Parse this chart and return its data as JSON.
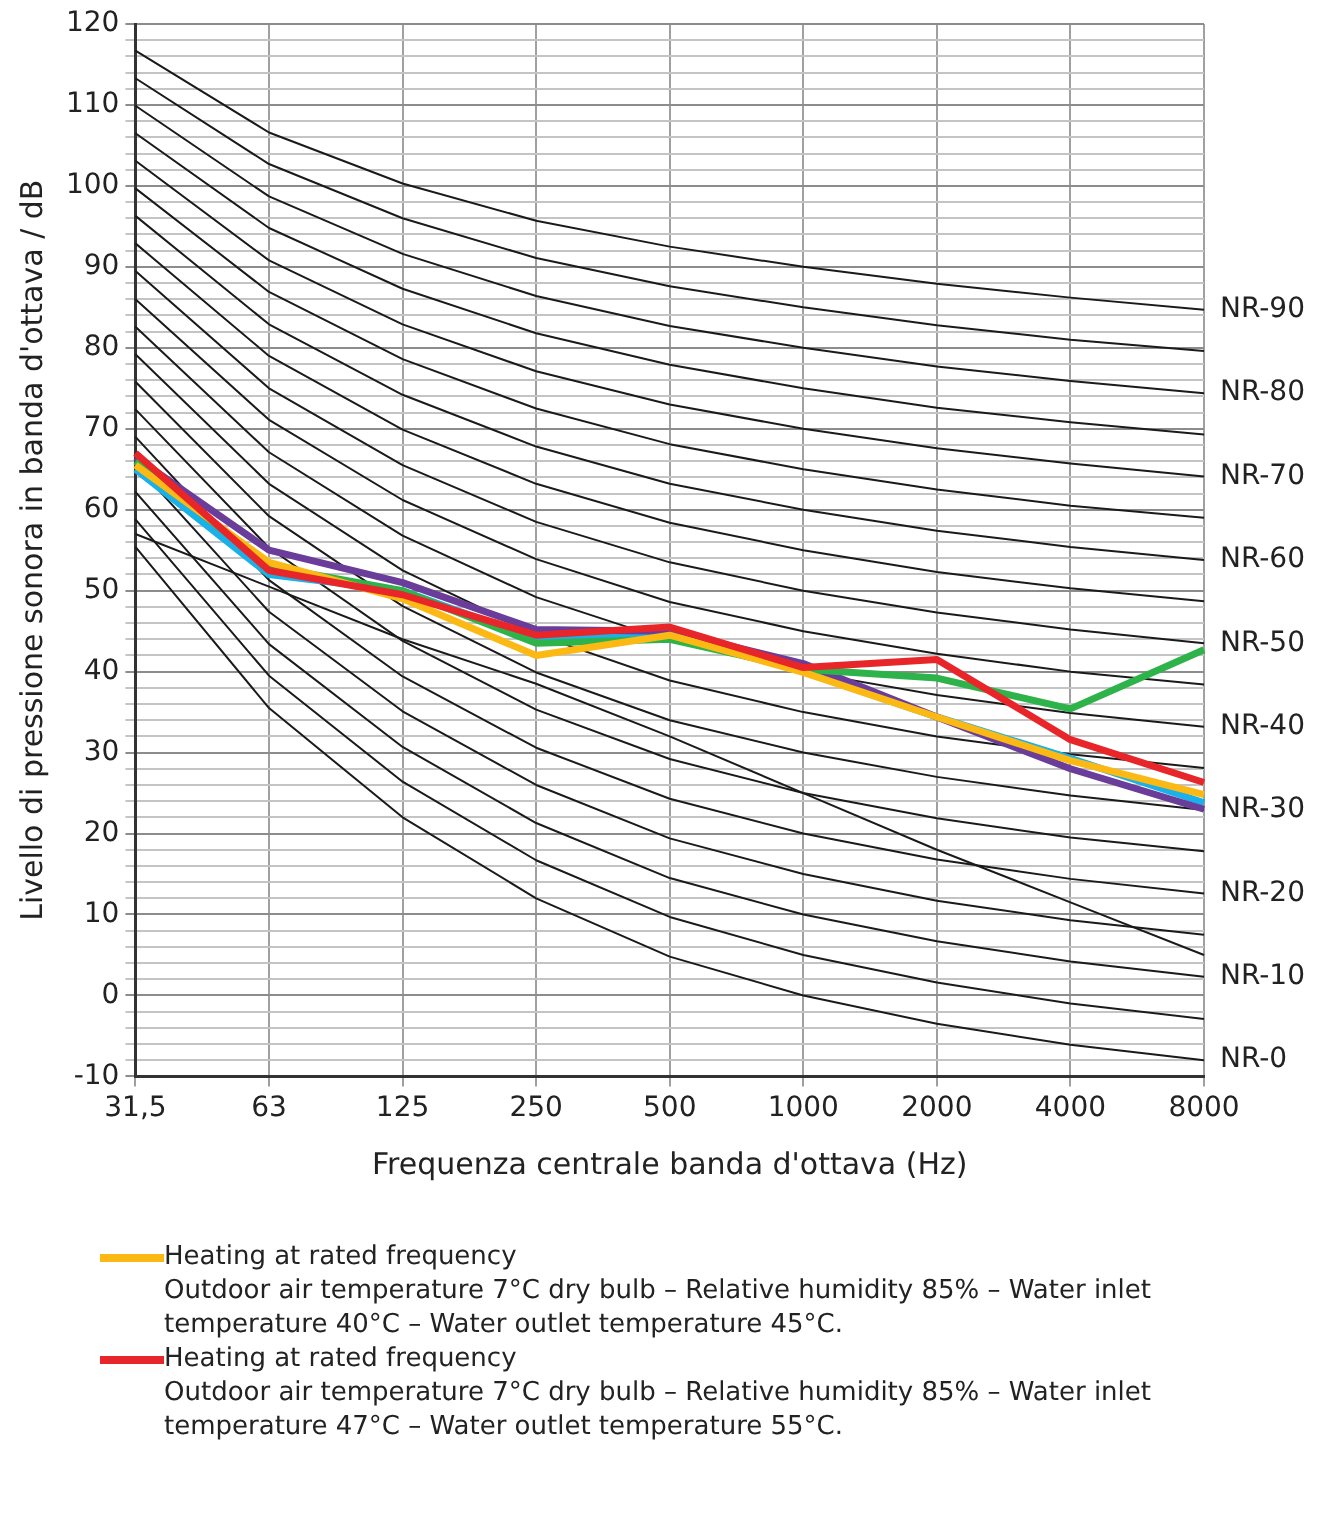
{
  "chart_data": {
    "type": "line",
    "xlabel": "Frequenza centrale banda d'ottava (Hz)",
    "ylabel": "Livello di pressione sonora in banda d'ottava / dB",
    "categories": [
      "31,5",
      "63",
      "125",
      "250",
      "500",
      "1000",
      "2000",
      "4000",
      "8000"
    ],
    "ylim": [
      -10,
      120
    ],
    "yticks": [
      -10,
      {
        "value": -8,
        "label": null
      },
      {
        "value": -6,
        "label": null
      },
      {
        "value": -4,
        "label": null
      },
      {
        "value": -2,
        "label": null
      },
      0,
      {
        "value": 2,
        "label": null
      },
      {
        "value": 4,
        "label": null
      },
      {
        "value": 6,
        "label": null
      },
      {
        "value": 8,
        "label": null
      },
      10,
      {
        "value": 12,
        "label": null
      },
      {
        "value": 14,
        "label": null
      },
      {
        "value": 16,
        "label": null
      },
      {
        "value": 18,
        "label": null
      },
      20,
      {
        "value": 22,
        "label": null
      },
      {
        "value": 24,
        "label": null
      },
      {
        "value": 26,
        "label": null
      },
      {
        "value": 28,
        "label": null
      },
      30,
      {
        "value": 32,
        "label": null
      },
      {
        "value": 34,
        "label": null
      },
      {
        "value": 36,
        "label": null
      },
      {
        "value": 38,
        "label": null
      },
      40,
      {
        "value": 42,
        "label": null
      },
      {
        "value": 44,
        "label": null
      },
      {
        "value": 46,
        "label": null
      },
      {
        "value": 48,
        "label": null
      },
      50,
      {
        "value": 52,
        "label": null
      },
      {
        "value": 54,
        "label": null
      },
      {
        "value": 56,
        "label": null
      },
      {
        "value": 58,
        "label": null
      },
      60,
      {
        "value": 62,
        "label": null
      },
      {
        "value": 64,
        "label": null
      },
      {
        "value": 66,
        "label": null
      },
      {
        "value": 68,
        "label": null
      },
      70,
      {
        "value": 72,
        "label": null
      },
      {
        "value": 74,
        "label": null
      },
      {
        "value": 76,
        "label": null
      },
      {
        "value": 78,
        "label": null
      },
      80,
      {
        "value": 82,
        "label": null
      },
      {
        "value": 84,
        "label": null
      },
      {
        "value": 86,
        "label": null
      },
      {
        "value": 88,
        "label": null
      },
      90,
      {
        "value": 92,
        "label": null
      },
      {
        "value": 94,
        "label": null
      },
      {
        "value": 96,
        "label": null
      },
      {
        "value": 98,
        "label": null
      },
      100,
      {
        "value": 102,
        "label": null
      },
      {
        "value": 104,
        "label": null
      },
      {
        "value": 106,
        "label": null
      },
      {
        "value": 108,
        "label": null
      },
      110,
      {
        "value": 112,
        "label": null
      },
      {
        "value": 114,
        "label": null
      },
      {
        "value": 116,
        "label": null
      },
      {
        "value": 118,
        "label": null
      },
      120
    ],
    "grid": true,
    "legend": "bottom",
    "marker": "none",
    "series": [
      {
        "color": "#1a1a1a",
        "values": [
          55.4,
          35.5,
          22,
          12,
          4.8,
          0,
          -3.5,
          -6.1,
          -8
        ]
      },
      {
        "color": "#1a1a1a",
        "values": [
          58.8,
          39.5,
          26.4,
          16.7,
          9.7,
          5,
          1.6,
          -1.0,
          -2.9
        ]
      },
      {
        "color": "#1a1a1a",
        "values": [
          62.2,
          43.4,
          30.7,
          21.3,
          14.5,
          10,
          6.7,
          4.2,
          2.3
        ]
      },
      {
        "color": "#1a1a1a",
        "values": [
          65.6,
          47.4,
          35.1,
          26.0,
          19.4,
          15,
          11.7,
          9.3,
          7.5
        ]
      },
      {
        "color": "#1a1a1a",
        "values": [
          69.0,
          51.3,
          39.4,
          30.6,
          24.3,
          20,
          16.8,
          14.4,
          12.6
        ]
      },
      {
        "color": "#1a1a1a",
        "values": [
          72.4,
          55.3,
          43.8,
          35.3,
          29.2,
          25,
          21.9,
          19.5,
          17.8
        ]
      },
      {
        "color": "#1a1a1a",
        "values": [
          75.8,
          59.2,
          48.1,
          39.9,
          34.0,
          30,
          27.0,
          24.7,
          22.9
        ]
      },
      {
        "color": "#1a1a1a",
        "values": [
          79.2,
          63.2,
          52.5,
          44.6,
          38.9,
          35,
          32.0,
          29.8,
          28.1
        ]
      },
      {
        "color": "#1a1a1a",
        "values": [
          82.6,
          67.1,
          56.8,
          49.2,
          43.8,
          40,
          37.1,
          34.9,
          33.2
        ]
      },
      {
        "color": "#1a1a1a",
        "values": [
          86.0,
          71.1,
          61.2,
          53.9,
          48.6,
          45,
          42.2,
          40.0,
          38.4
        ]
      },
      {
        "color": "#1a1a1a",
        "values": [
          89.5,
          75.0,
          65.5,
          58.5,
          53.5,
          50,
          47.3,
          45.2,
          43.5
        ]
      },
      {
        "color": "#1a1a1a",
        "values": [
          92.9,
          79.0,
          69.9,
          63.2,
          58.4,
          55,
          52.3,
          50.3,
          48.7
        ]
      },
      {
        "color": "#1a1a1a",
        "values": [
          96.3,
          82.9,
          74.2,
          67.8,
          63.2,
          60,
          57.4,
          55.4,
          53.8
        ]
      },
      {
        "color": "#1a1a1a",
        "values": [
          99.7,
          86.9,
          78.6,
          72.5,
          68.1,
          65,
          62.5,
          60.5,
          59.0
        ]
      },
      {
        "color": "#1a1a1a",
        "values": [
          103.1,
          90.8,
          82.9,
          77.1,
          73.0,
          70,
          67.6,
          65.7,
          64.1
        ]
      },
      {
        "color": "#1a1a1a",
        "values": [
          106.5,
          94.8,
          87.3,
          81.8,
          77.9,
          75,
          72.6,
          70.8,
          69.3
        ]
      },
      {
        "color": "#1a1a1a",
        "values": [
          109.9,
          98.7,
          91.6,
          86.4,
          82.7,
          80,
          77.7,
          75.9,
          74.4
        ]
      },
      {
        "color": "#1a1a1a",
        "values": [
          113.3,
          102.7,
          96.0,
          91.1,
          87.6,
          85,
          82.8,
          81.0,
          79.6
        ]
      },
      {
        "color": "#1a1a1a",
        "values": [
          116.7,
          106.6,
          100.3,
          95.7,
          92.5,
          90,
          87.9,
          86.2,
          84.7
        ]
      },
      {
        "color": "#1a1a1a",
        "values": [
          57,
          50.5,
          44,
          38.5,
          32,
          25,
          18,
          11.5,
          5
        ]
      },
      {
        "color": "#1ab0e8",
        "values": [
          65,
          52,
          50,
          44,
          44.5,
          40,
          34.4,
          29.3,
          23.8
        ]
      },
      {
        "color": "#6a3d9a",
        "values": [
          66.5,
          55,
          51,
          45.2,
          45,
          41,
          34.4,
          28,
          23
        ]
      },
      {
        "color": "#2eb34a",
        "values": [
          66,
          53,
          50,
          43.5,
          44,
          40.3,
          39.2,
          35.4,
          42.7
        ]
      },
      {
        "name": "Heating at rated frequency\nOutdoor air temperature 7°C dry bulb – Relative humidity 85% – Water inlet temperature 40°C – Water outlet temperature 45°C.",
        "color": "#fdb913",
        "values": [
          65.5,
          53.5,
          49,
          42,
          44.5,
          39.9,
          34.4,
          29,
          24.8
        ]
      },
      {
        "name": "Heating at rated frequency\nOutdoor air temperature 7°C dry bulb – Relative humidity 85% – Water inlet temperature 47°C – Water outlet temperature 55°C.",
        "color": "#e8262a",
        "values": [
          67,
          52.5,
          49.5,
          44.5,
          45.5,
          40.5,
          41.5,
          31.6,
          26.3
        ]
      }
    ],
    "annotations": [
      {
        "text": "NR-0",
        "x": "8000",
        "y": -8
      },
      {
        "text": "NR-10",
        "x": "8000",
        "y": 2.3
      },
      {
        "text": "NR-20",
        "x": "8000",
        "y": 12.6
      },
      {
        "text": "NR-30",
        "x": "8000",
        "y": 22.9
      },
      {
        "text": "NR-40",
        "x": "8000",
        "y": 33.2
      },
      {
        "text": "NR-50",
        "x": "8000",
        "y": 43.5
      },
      {
        "text": "NR-60",
        "x": "8000",
        "y": 53.8
      },
      {
        "text": "NR-70",
        "x": "8000",
        "y": 64.1
      },
      {
        "text": "NR-80",
        "x": "8000",
        "y": 74.4
      },
      {
        "text": "NR-90",
        "x": "8000",
        "y": 84.7
      }
    ]
  }
}
